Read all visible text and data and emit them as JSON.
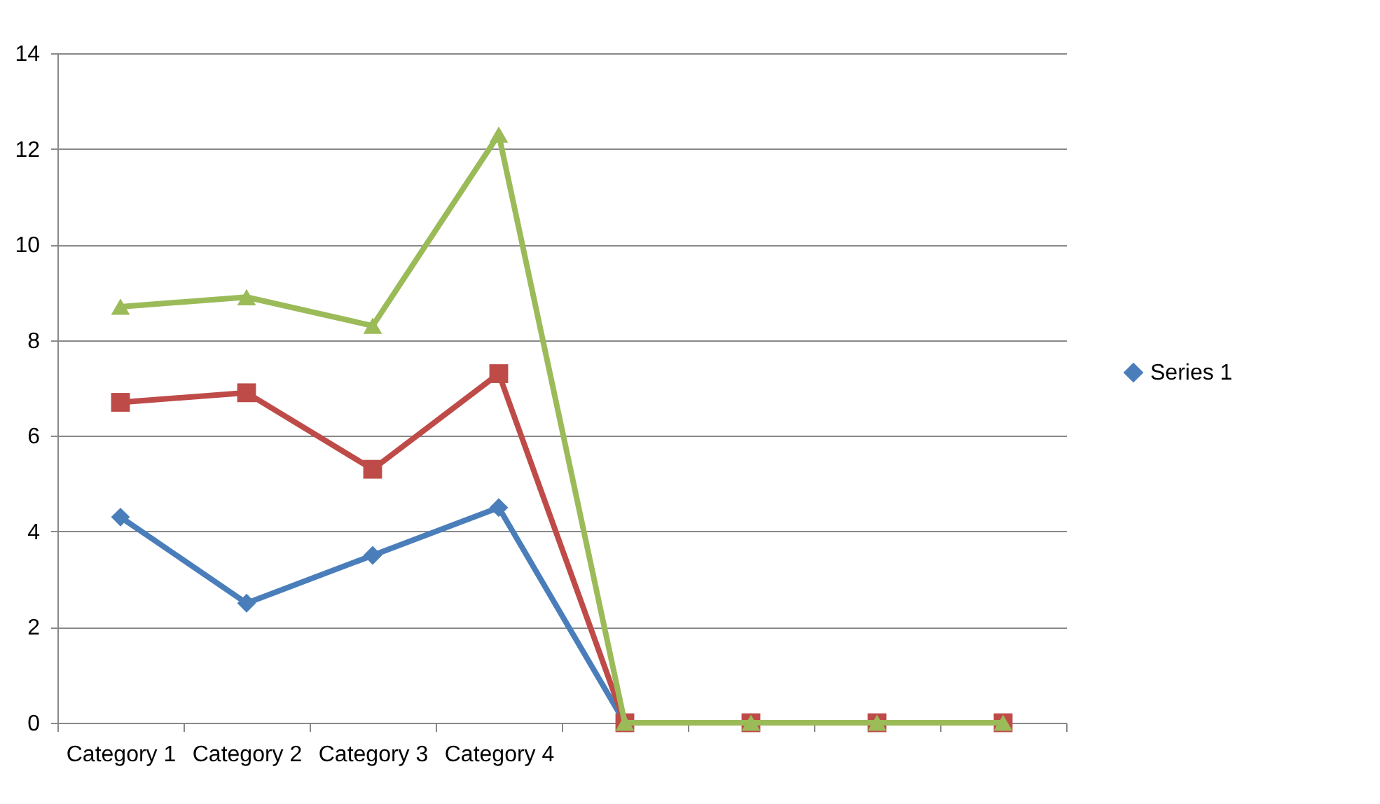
{
  "chart_data": {
    "type": "line",
    "categories": [
      "Category 1",
      "Category 2",
      "Category 3",
      "Category 4",
      null,
      null,
      null,
      null
    ],
    "series": [
      {
        "name": "Series 1",
        "color": "#4a7ebb",
        "marker": "diamond",
        "values": [
          4.3,
          2.5,
          3.5,
          4.5,
          0,
          0,
          null,
          null
        ]
      },
      {
        "color": "#be4b48",
        "marker": "square",
        "values": [
          6.7,
          6.9,
          5.3,
          7.3,
          0,
          0,
          0,
          0
        ]
      },
      {
        "color": "#9bbb59",
        "marker": "triangle",
        "values": [
          8.7,
          8.9,
          8.3,
          12.3,
          0,
          0,
          0,
          0
        ]
      }
    ],
    "ylim": [
      0,
      14
    ],
    "yticks": [
      0,
      2,
      4,
      6,
      8,
      10,
      12,
      14
    ],
    "grid": "y",
    "legend": "right"
  }
}
